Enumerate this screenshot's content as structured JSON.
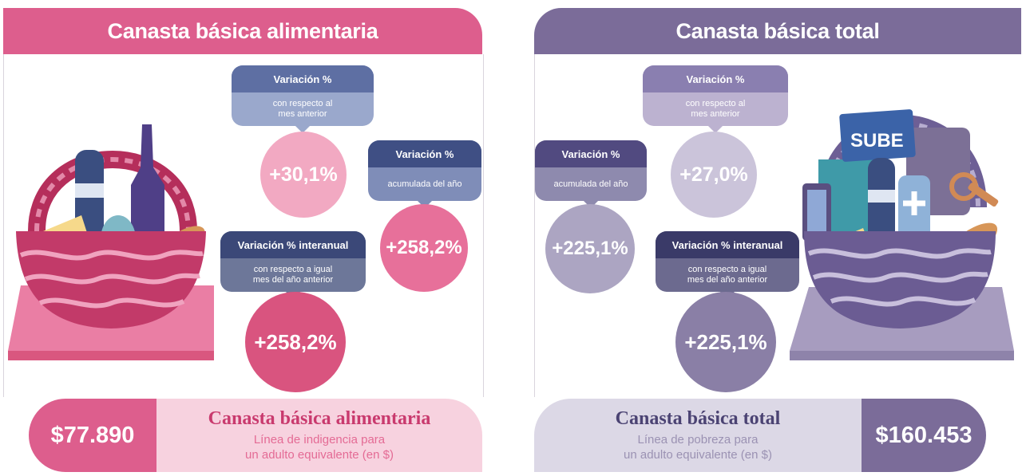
{
  "left": {
    "header": "Canasta básica alimentaria",
    "monthly": {
      "title": "Variación %",
      "sub1": "con respecto al",
      "sub2": "mes anterior",
      "value": "+30,1%"
    },
    "accumulated": {
      "title": "Variación %",
      "sub": "acumulada del año",
      "value": "+258,2%"
    },
    "yearly": {
      "title": "Variación % interanual",
      "sub1": "con respecto a igual",
      "sub2": "mes del año anterior",
      "value": "+258,2%"
    },
    "amount": "$77.890",
    "bottom_title": "Canasta básica alimentaria",
    "bottom_line1": "Línea de indigencia para",
    "bottom_line2": "un adulto equivalente (en $)"
  },
  "right": {
    "header": "Canasta básica total",
    "monthly": {
      "title": "Variación %",
      "sub1": "con respecto al",
      "sub2": "mes anterior",
      "value": "+27,0%"
    },
    "accumulated": {
      "title": "Variación %",
      "sub": "acumulada del año",
      "value": "+225,1%"
    },
    "yearly": {
      "title": "Variación % interanual",
      "sub1": "con respecto a igual",
      "sub2": "mes del año anterior",
      "value": "+225,1%"
    },
    "amount": "$160.453",
    "bottom_title": "Canasta básica total",
    "bottom_line1": "Línea de pobreza para",
    "bottom_line2": "un adulto equivalente (en $)",
    "card_text": "SUBE"
  },
  "colors": {
    "pink": "#dd5e8d",
    "purple": "#7b6c99",
    "pink_light": "#f2a9c2",
    "purple_light": "#b8afc9"
  }
}
